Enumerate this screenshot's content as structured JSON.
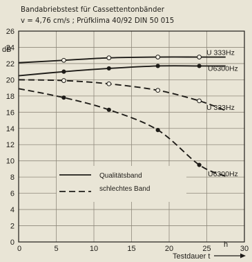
{
  "chart_data": {
    "type": "line",
    "title_line1": "Bandabriebstest für Cassettentonbänder",
    "title_line2": "v = 4,76 cm/s ; Prüfklima 40/92 DIN 50 015",
    "ylabel": "dB",
    "xlabel": "Testdauer t",
    "xunit": "h",
    "xlim": [
      0,
      30
    ],
    "ylim": [
      0,
      26
    ],
    "xticks": [
      "0",
      "5",
      "10",
      "15",
      "20",
      "25",
      "30"
    ],
    "yticks": [
      "0",
      "2",
      "4",
      "6",
      "8",
      "10",
      "12",
      "14",
      "16",
      "18",
      "20",
      "22",
      "24",
      "26"
    ],
    "grid": true,
    "legend": [
      {
        "label": "Qualitätsband",
        "style": "solid"
      },
      {
        "label": "schlechtes Band",
        "style": "dashed"
      }
    ],
    "series": [
      {
        "name": "U 333Hz",
        "style": "solid",
        "marker": "open",
        "x": [
          0,
          6,
          12,
          18.5,
          24,
          27.5
        ],
        "y": [
          22.1,
          22.4,
          22.7,
          22.8,
          22.8,
          22.8
        ],
        "points": [
          6,
          12,
          18.5,
          24
        ]
      },
      {
        "name": "U6300Hz",
        "style": "solid",
        "marker": "filled",
        "x": [
          0,
          6,
          12,
          18.5,
          24,
          27.5
        ],
        "y": [
          20.5,
          21.0,
          21.4,
          21.7,
          21.7,
          21.7
        ],
        "points": [
          6,
          12,
          18.5,
          24
        ]
      },
      {
        "name": "U 333Hz",
        "style": "dashed",
        "marker": "open",
        "x": [
          0,
          6,
          12,
          18.5,
          24,
          27.5
        ],
        "y": [
          20.0,
          19.9,
          19.5,
          18.7,
          17.4,
          16.2
        ],
        "points": [
          6,
          12,
          18.5,
          24
        ]
      },
      {
        "name": "U6300Hz",
        "style": "dashed",
        "marker": "filled",
        "x": [
          0,
          6,
          12,
          18.5,
          24,
          27.5
        ],
        "y": [
          18.9,
          17.8,
          16.3,
          13.8,
          9.5,
          8.1
        ],
        "points": [
          6,
          12,
          18.5,
          24
        ]
      }
    ]
  }
}
